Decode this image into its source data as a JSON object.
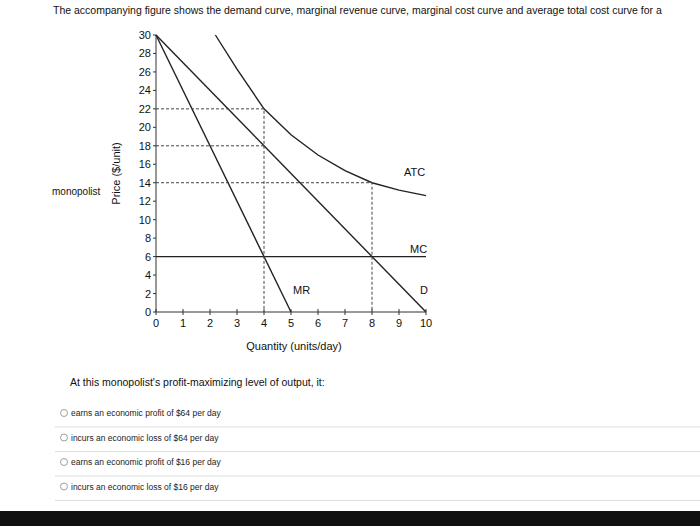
{
  "chart_data": {
    "type": "line",
    "title": "The accompanying figure shows the demand curve, marginal revenue curve, marginal cost curve and average total cost curve for a",
    "annotations": [
      "monopolist"
    ],
    "x_label": "Quantity (units/day)",
    "y_label": "Price ($/unit)",
    "xlim": [
      0,
      10
    ],
    "ylim": [
      0,
      30
    ],
    "xticks": [
      0,
      1,
      2,
      3,
      4,
      5,
      6,
      7,
      8,
      9,
      10
    ],
    "yticks": [
      0,
      2,
      4,
      6,
      8,
      10,
      12,
      14,
      16,
      18,
      20,
      22,
      24,
      26,
      28,
      30
    ],
    "grid": false,
    "series": [
      {
        "name": "MR",
        "color": "#222222",
        "x": [
          0,
          5
        ],
        "values": [
          30,
          0
        ]
      },
      {
        "name": "D",
        "color": "#222222",
        "x": [
          0,
          10
        ],
        "values": [
          30,
          0
        ]
      },
      {
        "name": "MC",
        "color": "#222222",
        "x": [
          0,
          10
        ],
        "values": [
          6,
          6
        ]
      },
      {
        "name": "ATC",
        "color": "#222222",
        "x": [
          2.2,
          3,
          4,
          5,
          6,
          7,
          8,
          9,
          10
        ],
        "values": [
          30,
          26.3,
          22,
          19.2,
          17,
          15.3,
          14,
          13.2,
          12.6
        ]
      },
      {
        "color": "#444444",
        "line_style": "dashed",
        "x": [
          0,
          4,
          4
        ],
        "values": [
          22,
          22,
          0
        ]
      },
      {
        "color": "#444444",
        "line_style": "dashed",
        "x": [
          0,
          4
        ],
        "values": [
          18,
          18
        ]
      },
      {
        "color": "#444444",
        "line_style": "dashed",
        "x": [
          0,
          8,
          8
        ],
        "values": [
          14,
          14,
          0
        ]
      }
    ]
  },
  "question": {
    "prompt": "At this monopolist's profit-maximizing level of output, it:",
    "options": [
      "earns an economic profit of $64 per day",
      "incurs an economic loss of $64 per day",
      "earns an economic profit of $16 per day",
      "incurs an economic loss of $16 per day"
    ]
  }
}
